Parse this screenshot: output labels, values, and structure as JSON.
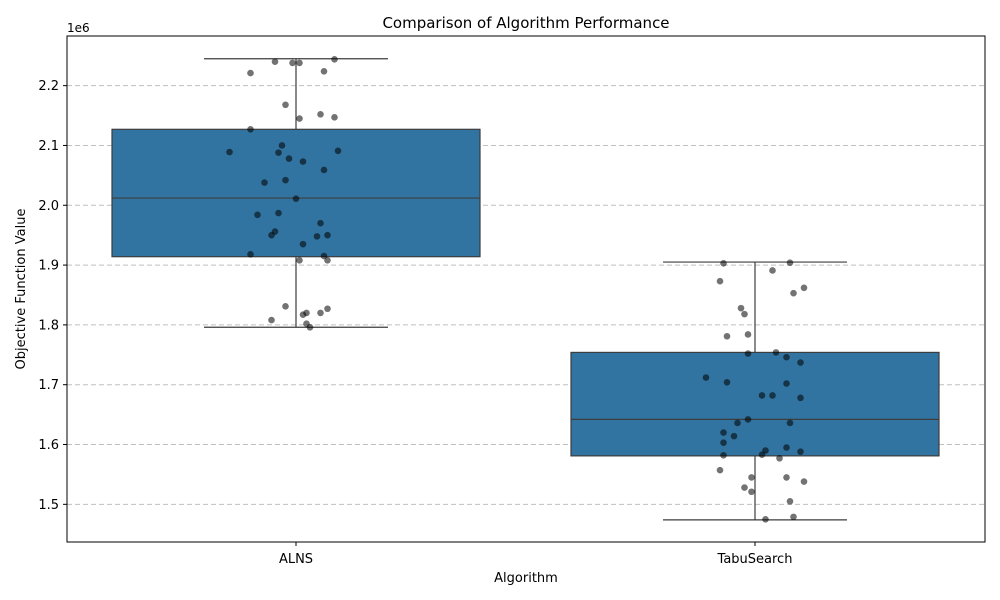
{
  "chart_data": {
    "type": "box",
    "title": "Comparison of Algorithm Performance",
    "xlabel": "Algorithm",
    "ylabel": "Objective Function Value",
    "y_offset_label": "1e6",
    "ylim": [
      1437000,
      2283000
    ],
    "yticks": [
      1500000,
      1600000,
      1700000,
      1800000,
      1900000,
      2000000,
      2100000,
      2200000
    ],
    "ytick_labels": [
      "1.5",
      "1.6",
      "1.7",
      "1.8",
      "1.9",
      "2.0",
      "2.1",
      "2.2"
    ],
    "grid": "y-dashed",
    "box_color": "#3274a1",
    "point_color": "#000000",
    "categories": [
      "ALNS",
      "TabuSearch"
    ],
    "boxes": [
      {
        "name": "ALNS",
        "whislo": 1796000,
        "q1": 1914000,
        "med": 2012000,
        "q3": 2127000,
        "whishi": 2245000
      },
      {
        "name": "TabuSearch",
        "whislo": 1474000,
        "q1": 1581000,
        "med": 1642000,
        "q3": 1754000,
        "whishi": 1905000
      }
    ],
    "points": [
      [
        [
          -0.06,
          2240000
        ],
        [
          -0.13,
          2221000
        ],
        [
          -0.01,
          2238000
        ],
        [
          0.01,
          2238000
        ],
        [
          0.11,
          2244000
        ],
        [
          0.08,
          2224000
        ],
        [
          -0.03,
          2168000
        ],
        [
          0.07,
          2152000
        ],
        [
          0.01,
          2145000
        ],
        [
          0.11,
          2147000
        ],
        [
          -0.13,
          2127000
        ],
        [
          -0.19,
          2089000
        ],
        [
          -0.04,
          2100000
        ],
        [
          -0.05,
          2088000
        ],
        [
          0.12,
          2091000
        ],
        [
          -0.02,
          2078000
        ],
        [
          0.02,
          2073000
        ],
        [
          0.08,
          2059000
        ],
        [
          -0.09,
          2038000
        ],
        [
          -0.03,
          2042000
        ],
        [
          0.0,
          2011000
        ],
        [
          -0.11,
          1984000
        ],
        [
          -0.05,
          1987000
        ],
        [
          0.07,
          1970000
        ],
        [
          -0.06,
          1956000
        ],
        [
          -0.07,
          1950000
        ],
        [
          0.06,
          1948000
        ],
        [
          0.09,
          1950000
        ],
        [
          0.02,
          1935000
        ],
        [
          -0.13,
          1918000
        ],
        [
          0.01,
          1908000
        ],
        [
          0.08,
          1915000
        ],
        [
          0.09,
          1908000
        ],
        [
          -0.03,
          1831000
        ],
        [
          0.09,
          1827000
        ],
        [
          0.07,
          1820000
        ],
        [
          0.03,
          1820000
        ],
        [
          0.02,
          1817000
        ],
        [
          -0.07,
          1808000
        ],
        [
          0.03,
          1802000
        ],
        [
          0.04,
          1796000
        ]
      ],
      [
        [
          -0.09,
          1903000
        ],
        [
          0.1,
          1904000
        ],
        [
          0.05,
          1891000
        ],
        [
          -0.1,
          1873000
        ],
        [
          0.14,
          1862000
        ],
        [
          0.11,
          1853000
        ],
        [
          -0.04,
          1828000
        ],
        [
          -0.03,
          1818000
        ],
        [
          -0.08,
          1781000
        ],
        [
          -0.02,
          1784000
        ],
        [
          -0.02,
          1752000
        ],
        [
          0.06,
          1754000
        ],
        [
          0.09,
          1746000
        ],
        [
          0.13,
          1737000
        ],
        [
          -0.14,
          1712000
        ],
        [
          -0.08,
          1704000
        ],
        [
          0.09,
          1702000
        ],
        [
          0.02,
          1682000
        ],
        [
          0.05,
          1682000
        ],
        [
          0.13,
          1678000
        ],
        [
          -0.02,
          1642000
        ],
        [
          -0.05,
          1636000
        ],
        [
          0.1,
          1636000
        ],
        [
          -0.09,
          1620000
        ],
        [
          -0.06,
          1614000
        ],
        [
          -0.09,
          1603000
        ],
        [
          0.09,
          1595000
        ],
        [
          0.03,
          1590000
        ],
        [
          0.13,
          1588000
        ],
        [
          -0.09,
          1582000
        ],
        [
          0.02,
          1583000
        ],
        [
          0.07,
          1577000
        ],
        [
          -0.1,
          1557000
        ],
        [
          -0.01,
          1545000
        ],
        [
          0.09,
          1545000
        ],
        [
          0.14,
          1538000
        ],
        [
          -0.03,
          1528000
        ],
        [
          -0.01,
          1521000
        ],
        [
          0.1,
          1505000
        ],
        [
          0.11,
          1479000
        ],
        [
          0.03,
          1475000
        ]
      ]
    ]
  }
}
